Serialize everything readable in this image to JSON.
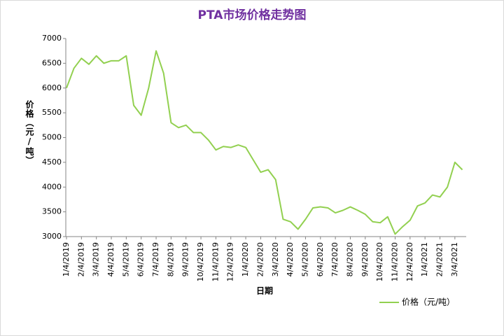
{
  "chart_data": {
    "type": "line",
    "title": "PTA市场价格走势图",
    "x_label": "日期",
    "y_label": "价格（元/吨）",
    "categories": [
      "1/4/2019",
      null,
      "2/4/2019",
      null,
      "3/4/2019",
      null,
      "4/4/2019",
      null,
      "5/4/2019",
      null,
      "6/4/2019",
      null,
      "7/4/2019",
      null,
      "8/4/2019",
      null,
      "9/4/2019",
      null,
      "10/4/2019",
      null,
      "11/4/2019",
      null,
      "12/4/2019",
      null,
      "1/4/2020",
      null,
      "2/4/2020",
      null,
      "3/4/2020",
      null,
      "4/4/2020",
      null,
      "5/4/2020",
      null,
      "6/4/2020",
      null,
      "7/4/2020",
      null,
      "8/4/2020",
      null,
      "9/4/2020",
      null,
      "10/4/2020",
      null,
      "11/4/2020",
      null,
      "12/4/2020",
      null,
      "1/4/2021",
      null,
      "2/4/2021",
      null,
      "3/4/2021",
      null
    ],
    "series": [
      {
        "name": "价格（元/吨）",
        "color": "#92d050",
        "values": [
          6000,
          6400,
          6600,
          6480,
          6650,
          6500,
          6550,
          6550,
          6650,
          5650,
          5450,
          6000,
          6750,
          6300,
          5300,
          5200,
          5250,
          5100,
          5100,
          4950,
          4750,
          4820,
          4800,
          4850,
          4800,
          4550,
          4300,
          4350,
          4150,
          3350,
          3300,
          3150,
          3350,
          3580,
          3600,
          3580,
          3480,
          3530,
          3600,
          3530,
          3450,
          3300,
          3280,
          3400,
          3050,
          3200,
          3330,
          3620,
          3680,
          3840,
          3800,
          4000,
          4500,
          4350
        ]
      }
    ],
    "ylim": [
      3000,
      7000
    ],
    "yticks": [
      3000,
      3500,
      4000,
      4500,
      5000,
      5500,
      6000,
      6500,
      7000
    ],
    "grid": false,
    "legend": "bottom-right"
  }
}
